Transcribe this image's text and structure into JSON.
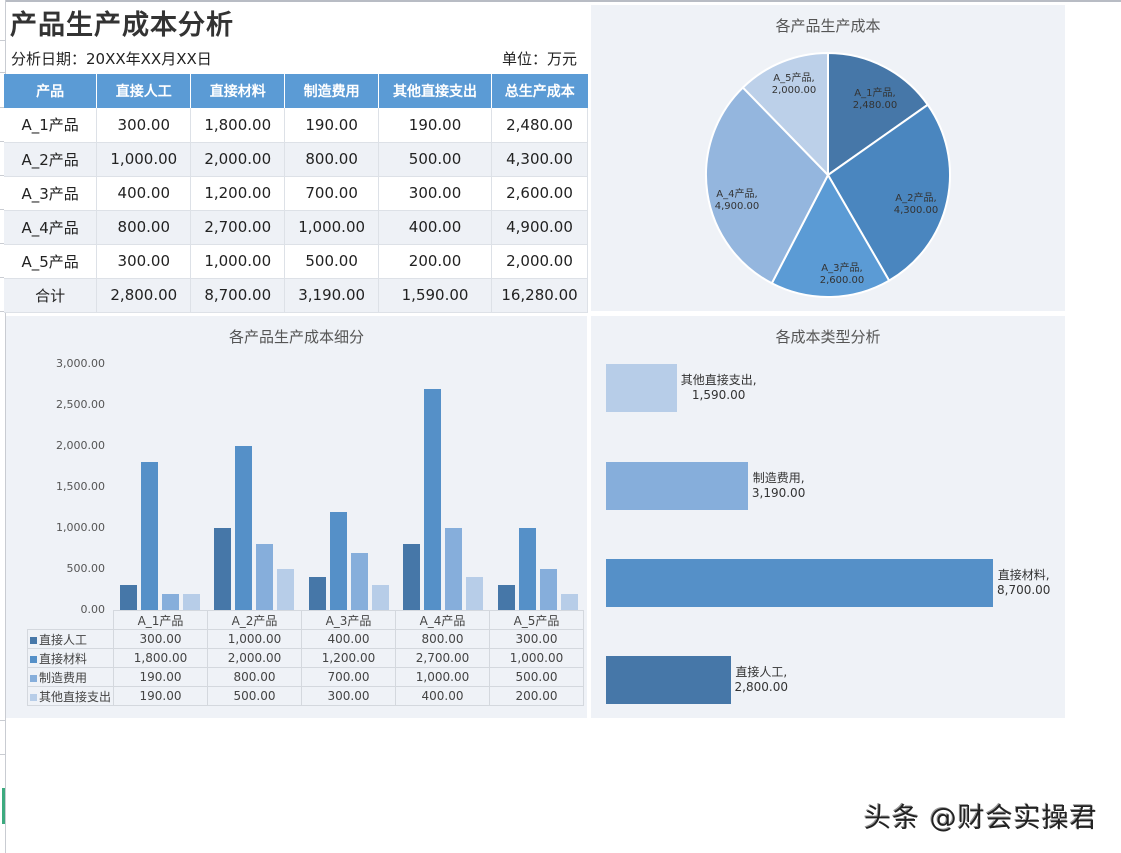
{
  "header": {
    "title": "产品生产成本分析",
    "date_label": "分析日期：20XX年XX月XX日",
    "unit_label": "单位：万元"
  },
  "table": {
    "columns": [
      "产品",
      "直接人工",
      "直接材料",
      "制造费用",
      "其他直接支出",
      "总生产成本"
    ],
    "rows": [
      [
        "A_1产品",
        "300.00",
        "1,800.00",
        "190.00",
        "190.00",
        "2,480.00"
      ],
      [
        "A_2产品",
        "1,000.00",
        "2,000.00",
        "800.00",
        "500.00",
        "4,300.00"
      ],
      [
        "A_3产品",
        "400.00",
        "1,200.00",
        "700.00",
        "300.00",
        "2,600.00"
      ],
      [
        "A_4产品",
        "800.00",
        "2,700.00",
        "1,000.00",
        "400.00",
        "4,900.00"
      ],
      [
        "A_5产品",
        "300.00",
        "1,000.00",
        "500.00",
        "200.00",
        "2,000.00"
      ],
      [
        "合计",
        "2,800.00",
        "8,700.00",
        "3,190.00",
        "1,590.00",
        "16,280.00"
      ]
    ]
  },
  "colors": {
    "header_blue": "#5b9bd5",
    "series_labor": "#4677a8",
    "series_material": "#5590c8",
    "series_overhead": "#86aedb",
    "series_other": "#b7cde8",
    "panel_bg": "#eff2f7"
  },
  "chart_data": [
    {
      "type": "pie",
      "title": "各产品生产成本",
      "categories": [
        "A_1产品",
        "A_2产品",
        "A_3产品",
        "A_4产品",
        "A_5产品"
      ],
      "values": [
        2480,
        4300,
        2600,
        4900,
        2000
      ],
      "labels": [
        "A_1产品,\n2,480.00",
        "A_2产品,\n4,300.00",
        "A_3产品,\n2,600.00",
        "A_4产品,\n4,900.00",
        "A_5产品,\n2,000.00"
      ],
      "colors": [
        "#4677a8",
        "#4a86bf",
        "#5b9bd5",
        "#94b6de",
        "#bcd0e9"
      ]
    },
    {
      "type": "bar",
      "title": "各产品生产成本细分",
      "categories": [
        "A_1产品",
        "A_2产品",
        "A_3产品",
        "A_4产品",
        "A_5产品"
      ],
      "series": [
        {
          "name": "直接人工",
          "values": [
            300,
            1000,
            400,
            800,
            300
          ]
        },
        {
          "name": "直接材料",
          "values": [
            1800,
            2000,
            1200,
            2700,
            1000
          ]
        },
        {
          "name": "制造费用",
          "values": [
            190,
            800,
            700,
            1000,
            500
          ]
        },
        {
          "name": "其他直接支出",
          "values": [
            190,
            500,
            300,
            400,
            200
          ]
        }
      ],
      "yticks": [
        "0.00",
        "500.00",
        "1,000.00",
        "1,500.00",
        "2,000.00",
        "2,500.00",
        "3,000.00"
      ],
      "ylim": [
        0,
        3000
      ],
      "xlabel": "",
      "ylabel": "",
      "legend": "data-table below chart",
      "data_table": [
        [
          "300.00",
          "1,000.00",
          "400.00",
          "800.00",
          "300.00"
        ],
        [
          "1,800.00",
          "2,000.00",
          "1,200.00",
          "2,700.00",
          "1,000.00"
        ],
        [
          "190.00",
          "800.00",
          "700.00",
          "1,000.00",
          "500.00"
        ],
        [
          "190.00",
          "500.00",
          "300.00",
          "400.00",
          "200.00"
        ]
      ]
    },
    {
      "type": "bar",
      "orientation": "horizontal",
      "title": "各成本类型分析",
      "categories": [
        "其他直接支出",
        "制造费用",
        "直接材料",
        "直接人工"
      ],
      "values": [
        1590,
        3190,
        8700,
        2800
      ],
      "labels": [
        "其他直接支出,\n1,590.00",
        "制造费用,\n3,190.00",
        "直接材料,\n8,700.00",
        "直接人工,\n2,800.00"
      ],
      "colors": [
        "#b7cde8",
        "#86aedb",
        "#5590c8",
        "#4677a8"
      ]
    }
  ],
  "watermark": "头条 @财会实操君"
}
